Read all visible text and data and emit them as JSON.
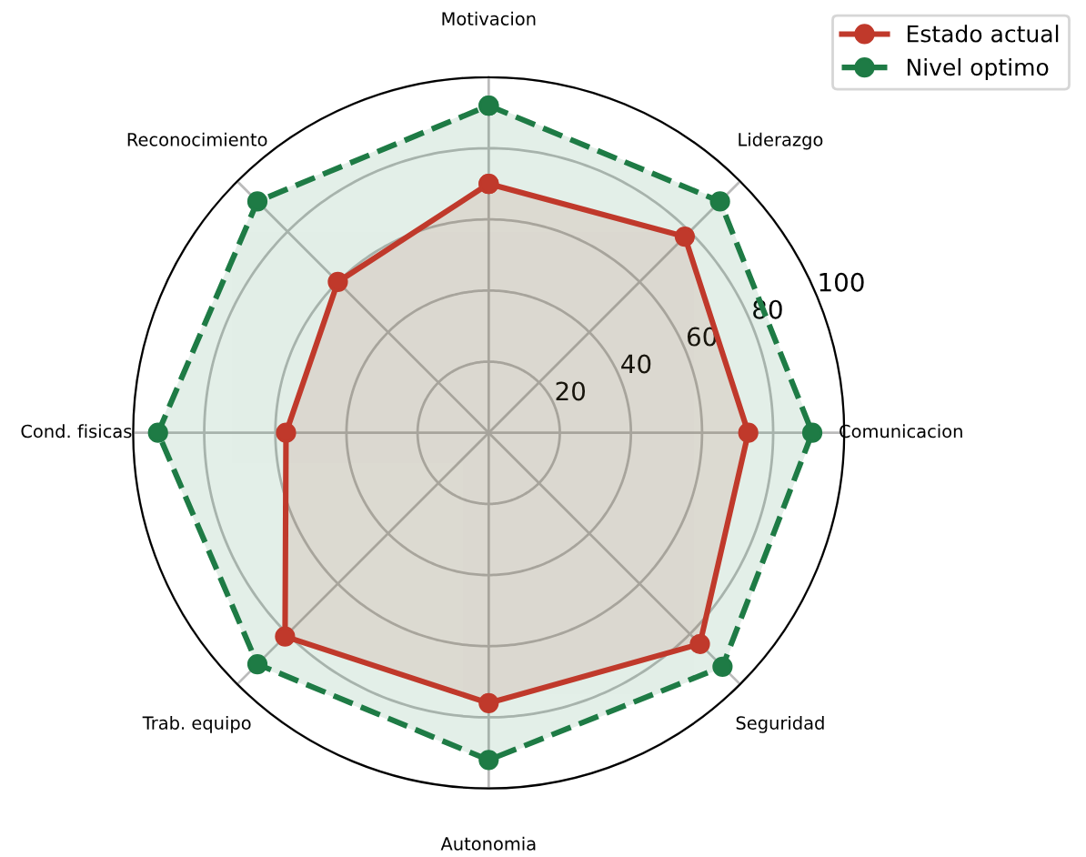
{
  "chart_data": {
    "type": "radar",
    "categories": [
      "Motivacion",
      "Liderazgo",
      "Comunicacion",
      "Seguridad",
      "Autonomia",
      "Trab. equipo",
      "Cond. fisicas",
      "Reconocimiento"
    ],
    "series": [
      {
        "name": "Estado actual",
        "color": "#c0392b",
        "line_style": "solid",
        "values": [
          70,
          78,
          73,
          84,
          76,
          81,
          57,
          60
        ]
      },
      {
        "name": "Nivel optimo",
        "color": "#1e7b45",
        "line_style": "dashed",
        "values": [
          92,
          92,
          91,
          93,
          92,
          92,
          93,
          92
        ]
      }
    ],
    "ylim": [
      0,
      100
    ],
    "yticks": [
      20,
      40,
      60,
      80,
      100
    ],
    "grid": true,
    "legend": "top right",
    "marker": "circle"
  }
}
